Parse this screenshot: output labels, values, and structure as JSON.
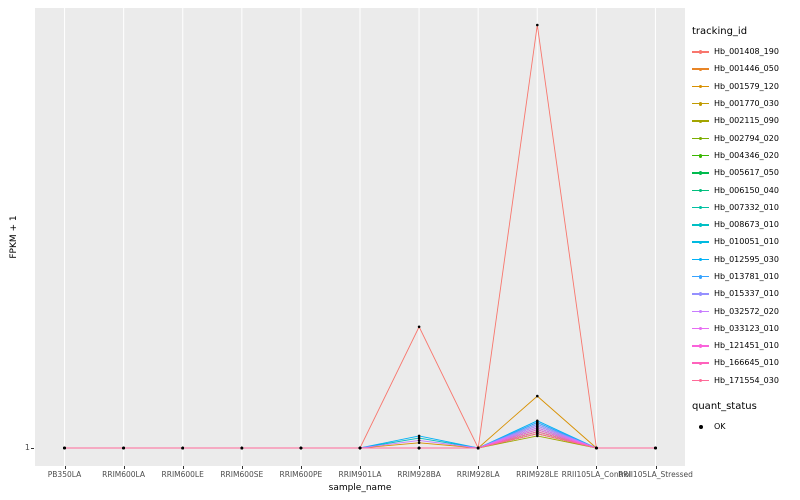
{
  "figure": {
    "background": "#FFFFFF",
    "panel_background": "#EBEBEB",
    "grid_color": "#FFFFFF",
    "axis_text_color": "#4D4D4D",
    "point_color": "#000000"
  },
  "legend": {
    "tracking_title": "tracking_id",
    "quant_title": "quant_status",
    "quant_items": [
      {
        "label": "OK",
        "marker": "point",
        "marker_color": "#000000"
      }
    ],
    "position": "right"
  },
  "chart_data": {
    "type": "line",
    "title": "",
    "xlabel": "sample_name",
    "ylabel": "FPKM + 1",
    "y_scale": "log10",
    "y_tick_labels": [
      "1"
    ],
    "grid": "vertical-major-only",
    "legend_position": "right",
    "point_marker": {
      "shape": "dot",
      "color": "#000000",
      "meaning": "quant_status OK"
    },
    "categories": [
      "PB350LA",
      "RRIM600LA",
      "RRIM600LE",
      "RRIM600SE",
      "RRIM600PE",
      "RRIM901LA",
      "RRIM928BA",
      "RRIM928LA",
      "RRIM928LE",
      "RRII105LA_Control",
      "RRII105LA_Stressed"
    ],
    "series": [
      {
        "name": "Hb_001408_190",
        "color": "#F8766D",
        "values": [
          1,
          1,
          1,
          1,
          1,
          1,
          9.3,
          1,
          2400,
          1,
          1
        ]
      },
      {
        "name": "Hb_001446_050",
        "color": "#E88526",
        "values": [
          1,
          1,
          1,
          1,
          1,
          1,
          1,
          1,
          1.3,
          1,
          1
        ]
      },
      {
        "name": "Hb_001579_120",
        "color": "#D89000",
        "values": [
          1,
          1,
          1,
          1,
          1,
          1,
          1.1,
          1,
          2.6,
          1,
          1
        ]
      },
      {
        "name": "Hb_001770_030",
        "color": "#C09B00",
        "values": [
          1,
          1,
          1,
          1,
          1,
          1,
          1,
          1,
          1.35,
          1,
          1
        ]
      },
      {
        "name": "Hb_002115_090",
        "color": "#A3A500",
        "values": [
          1,
          1,
          1,
          1,
          1,
          1,
          1,
          1,
          1.25,
          1,
          1
        ]
      },
      {
        "name": "Hb_002794_020",
        "color": "#7CAE00",
        "values": [
          1,
          1,
          1,
          1,
          1,
          1,
          1,
          1,
          1.3,
          1,
          1
        ]
      },
      {
        "name": "Hb_004346_020",
        "color": "#39B600",
        "values": [
          1,
          1,
          1,
          1,
          1,
          1,
          1,
          1,
          1.35,
          1,
          1
        ]
      },
      {
        "name": "Hb_005617_050",
        "color": "#00BB4E",
        "values": [
          1,
          1,
          1,
          1,
          1,
          1,
          1,
          1,
          1.4,
          1,
          1
        ]
      },
      {
        "name": "Hb_006150_040",
        "color": "#00BF7D",
        "values": [
          1,
          1,
          1,
          1,
          1,
          1,
          1,
          1,
          1.45,
          1,
          1
        ]
      },
      {
        "name": "Hb_007332_010",
        "color": "#00C1A3",
        "values": [
          1,
          1,
          1,
          1,
          1,
          1,
          1,
          1,
          1.5,
          1,
          1
        ]
      },
      {
        "name": "Hb_008673_010",
        "color": "#00BFC4",
        "values": [
          1,
          1,
          1,
          1,
          1,
          1,
          1.2,
          1,
          1.55,
          1,
          1
        ]
      },
      {
        "name": "Hb_010051_010",
        "color": "#00BAE0",
        "values": [
          1,
          1,
          1,
          1,
          1,
          1,
          1,
          1,
          1.6,
          1,
          1
        ]
      },
      {
        "name": "Hb_012595_030",
        "color": "#00B0F6",
        "values": [
          1,
          1,
          1,
          1,
          1,
          1,
          1.25,
          1,
          1.65,
          1,
          1
        ]
      },
      {
        "name": "Hb_013781_010",
        "color": "#35A2FF",
        "values": [
          1,
          1,
          1,
          1,
          1,
          1,
          1,
          1,
          1.6,
          1,
          1
        ]
      },
      {
        "name": "Hb_015337_010",
        "color": "#9590FF",
        "values": [
          1,
          1,
          1,
          1,
          1,
          1,
          1,
          1,
          1.55,
          1,
          1
        ]
      },
      {
        "name": "Hb_032572_020",
        "color": "#C77CFF",
        "values": [
          1,
          1,
          1,
          1,
          1,
          1,
          1.15,
          1,
          1.5,
          1,
          1
        ]
      },
      {
        "name": "Hb_033123_010",
        "color": "#E76BF3",
        "values": [
          1,
          1,
          1,
          1,
          1,
          1,
          1,
          1,
          1.45,
          1,
          1
        ]
      },
      {
        "name": "Hb_121451_010",
        "color": "#FA62DB",
        "values": [
          1,
          1,
          1,
          1,
          1,
          1,
          1,
          1,
          1.4,
          1,
          1
        ]
      },
      {
        "name": "Hb_166645_010",
        "color": "#FF62BC",
        "values": [
          1,
          1,
          1,
          1,
          1,
          1,
          1,
          1,
          1.35,
          1,
          1
        ]
      },
      {
        "name": "Hb_171554_030",
        "color": "#FF6A98",
        "values": [
          1,
          1,
          1,
          1,
          1,
          1,
          1,
          1,
          1.3,
          1,
          1
        ]
      }
    ]
  }
}
